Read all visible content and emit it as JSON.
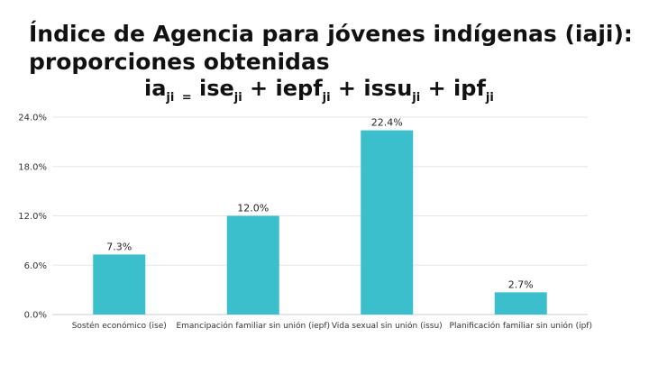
{
  "header": {
    "title_line1": "Índice de Agencia para jóvenes indígenas (iaji):",
    "title_line2": "proporciones obtenidas",
    "formula": {
      "ia": "ia",
      "sub_ia": "ji",
      "eq": "=",
      "ise": "ise",
      "sub_ise": "ji",
      "plus1": "+",
      "iepf": "iepf",
      "sub_iepf": "ji",
      "plus2": "+",
      "issu": "issu",
      "sub_issu": "ji",
      "plus3": "+",
      "ipf": "ipf",
      "sub_ipf": "ji"
    }
  },
  "chart_data": {
    "type": "bar",
    "categories": [
      "Sostén económico (ise)",
      "Emancipación familiar sin unión (iepf)",
      "Vida sexual sin unión (issu)",
      "Planificación familiar sin unión (ipf)"
    ],
    "values": [
      7.3,
      12.0,
      22.4,
      2.7
    ],
    "data_labels": [
      "7.3%",
      "12.0%",
      "22.4%",
      "2.7%"
    ],
    "yticks": [
      "0.0%",
      "6.0%",
      "12.0%",
      "18.0%",
      "24.0%"
    ],
    "ylim": [
      0,
      24
    ],
    "grid": true,
    "bar_color": "#3bbfcc",
    "grid_color": "#e6e6e6"
  }
}
